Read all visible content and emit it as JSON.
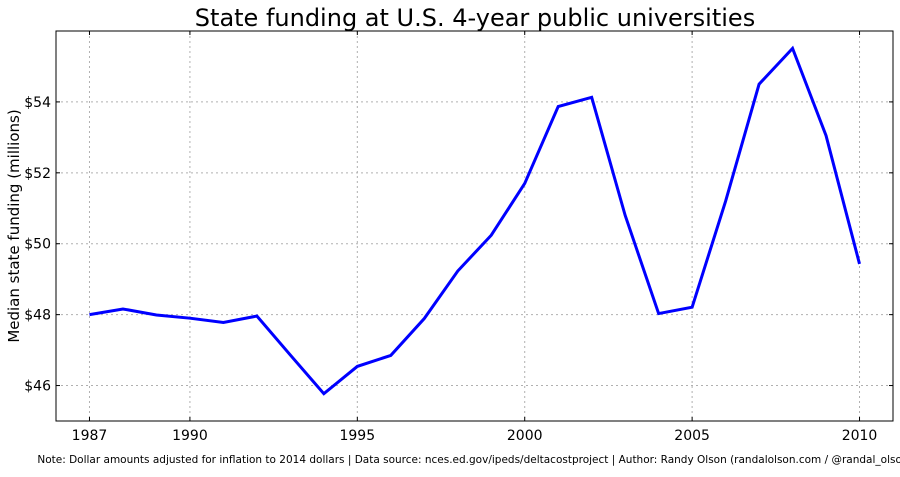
{
  "chart_data": {
    "type": "line",
    "title": "State funding at U.S. 4-year public universities",
    "xlabel": "",
    "ylabel": "Median state funding (millions)",
    "xlim": [
      1986,
      2011
    ],
    "ylim": [
      45,
      56
    ],
    "grid": true,
    "x_ticks": [
      1987,
      1990,
      1995,
      2000,
      2005,
      2010
    ],
    "x_tick_labels": [
      "1987",
      "1990",
      "1995",
      "2000",
      "2005",
      "2010"
    ],
    "y_ticks": [
      46,
      48,
      50,
      52,
      54
    ],
    "y_tick_labels": [
      "$46",
      "$48",
      "$50",
      "$52",
      "$54"
    ],
    "line_color": "#0000ff",
    "series": [
      {
        "x": [
          1987,
          1988,
          1989,
          1990,
          1991,
          1992,
          1993,
          1994,
          1995,
          1996,
          1997,
          1998,
          1999,
          2000,
          2001,
          2002,
          2003,
          2004,
          2005,
          2006,
          2007,
          2008,
          2009,
          2010
        ],
        "values": [
          48.0,
          48.16,
          47.99,
          47.9,
          47.78,
          47.96,
          46.86,
          45.77,
          46.54,
          46.85,
          47.89,
          49.23,
          50.24,
          51.7,
          53.87,
          54.13,
          50.8,
          48.03,
          48.21,
          51.2,
          54.5,
          55.51,
          53.05,
          49.43
        ]
      }
    ]
  },
  "footer_note": "Note: Dollar amounts adjusted for inflation to 2014 dollars | Data source: nces.ed.gov/ipeds/deltacostproject | Author: Randy Olson (randalolson.com / @randal_olson)"
}
